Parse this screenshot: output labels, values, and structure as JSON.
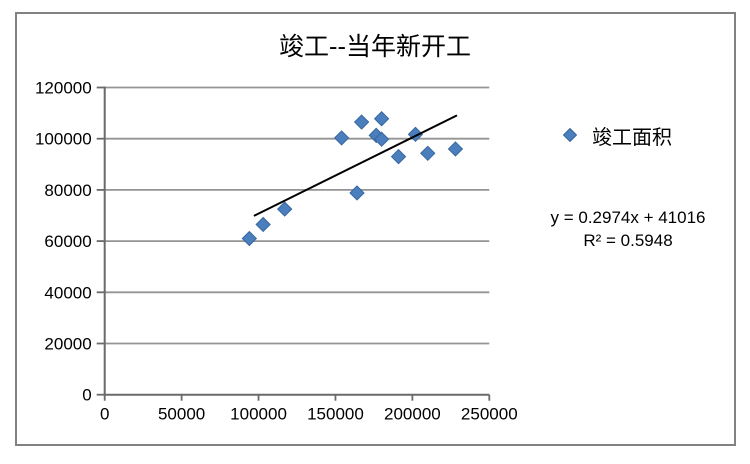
{
  "window": {
    "background": "#ffffff",
    "border_color": "#828282"
  },
  "chart": {
    "colors": {
      "marker": "#4a7ebc",
      "marker_stroke": "#38679f",
      "trendline": "#000000",
      "gridline": "#949494",
      "axis": "#6a6a6a",
      "text": "#000000"
    }
  },
  "chart_data": {
    "type": "scatter",
    "title": "竣工--当年新开工",
    "legend_position": "right",
    "grid": "horizontal",
    "series": [
      {
        "name": "竣工面积",
        "marker": "diamond-icon",
        "color": "#4a7ebc",
        "points": [
          [
            94000,
            61000
          ],
          [
            103000,
            66500
          ],
          [
            117000,
            72500
          ],
          [
            154000,
            100300
          ],
          [
            167000,
            106500
          ],
          [
            180000,
            107800
          ],
          [
            176500,
            101300
          ],
          [
            180000,
            99800
          ],
          [
            164000,
            78800
          ],
          [
            191000,
            93000
          ],
          [
            202000,
            101700
          ],
          [
            210000,
            94300
          ],
          [
            228000,
            96000
          ]
        ]
      }
    ],
    "trendline": {
      "equation": "y = 0.2974x + 41016",
      "r2_label": "R² = 0.5948",
      "slope": 0.2974,
      "intercept": 41016,
      "x_start": 97000,
      "x_end": 229000
    },
    "x_axis": {
      "min": 0,
      "max": 250000,
      "tick_step": 50000,
      "ticks": [
        0,
        50000,
        100000,
        150000,
        200000,
        250000
      ]
    },
    "y_axis": {
      "min": 0,
      "max": 120000,
      "tick_step": 20000,
      "ticks": [
        0,
        20000,
        40000,
        60000,
        80000,
        100000,
        120000
      ]
    }
  }
}
